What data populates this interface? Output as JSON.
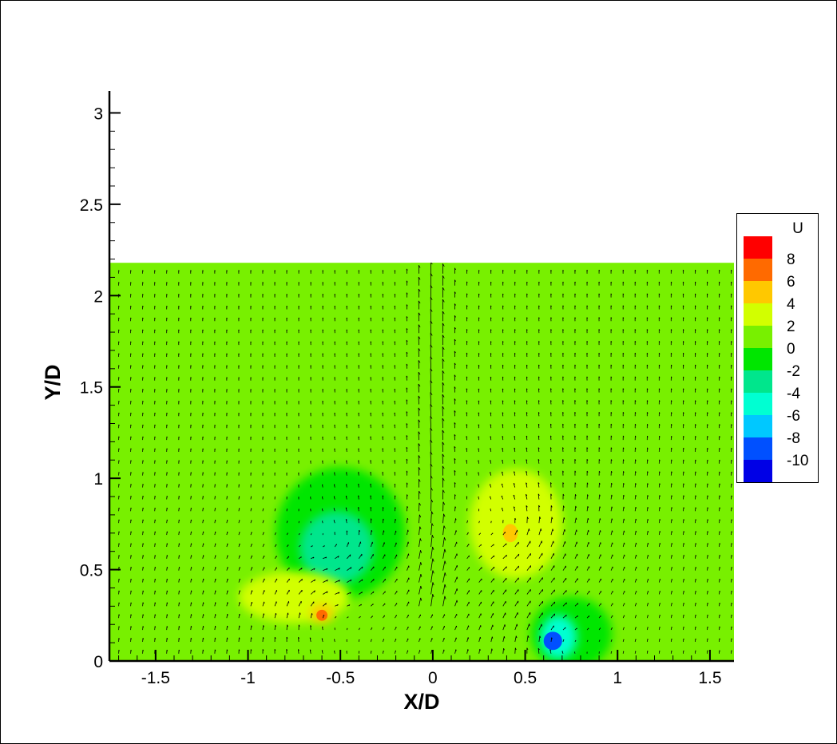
{
  "chart_data": {
    "type": "heatmap",
    "subtype": "contour with vector field",
    "xlabel": "X/D",
    "ylabel": "Y/D",
    "xlim": [
      -1.75,
      1.63
    ],
    "ylim": [
      0,
      3.05
    ],
    "data_region": {
      "x": [
        -1.75,
        1.63
      ],
      "y": [
        0,
        2.18
      ]
    },
    "xticks": [
      -1.5,
      -1,
      -0.5,
      0,
      0.5,
      1,
      1.5
    ],
    "xtick_labels": [
      "-1.5",
      "-1",
      "-0.5",
      "0",
      "0.5",
      "1",
      "1.5"
    ],
    "yticks": [
      0,
      0.5,
      1,
      1.5,
      2,
      2.5,
      3
    ],
    "ytick_labels": [
      "0",
      "0.5",
      "1",
      "1.5",
      "2",
      "2.5",
      "3"
    ],
    "colorbar": {
      "title": "U",
      "levels": [
        8,
        6,
        4,
        2,
        0,
        -2,
        -4,
        -6,
        -8,
        -10
      ],
      "labels": [
        "8",
        "6",
        "4",
        "2",
        "0",
        "-2",
        "-4",
        "-6",
        "-8",
        "-10"
      ],
      "colors": [
        "#ff0000",
        "#ff6a00",
        "#ffc800",
        "#d2ff00",
        "#78f000",
        "#00e600",
        "#00e68c",
        "#00ffd2",
        "#00c8ff",
        "#0050ff",
        "#0000e6"
      ]
    },
    "background_level": 0,
    "features": [
      {
        "value": -4,
        "x": -0.52,
        "y": 0.62
      },
      {
        "value": 6,
        "x": -0.6,
        "y": 0.26
      },
      {
        "value": 3,
        "x": 0.42,
        "y": 0.7
      },
      {
        "value": -10,
        "x": 0.65,
        "y": 0.12
      }
    ],
    "grid": false,
    "legend_position": "right"
  }
}
